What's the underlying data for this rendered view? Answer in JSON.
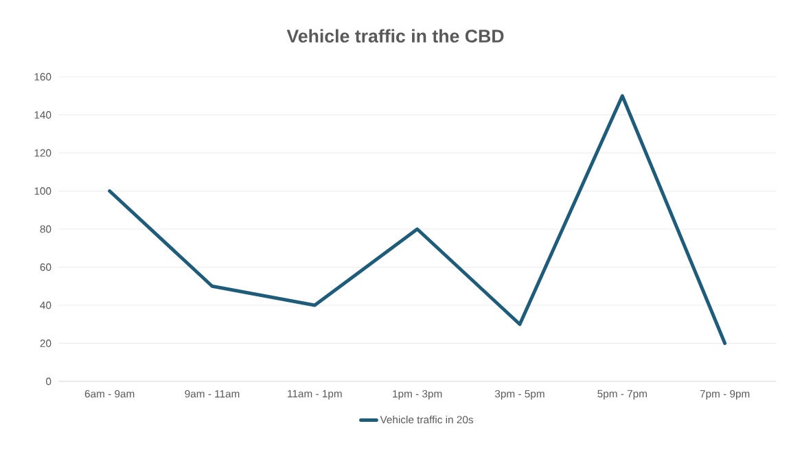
{
  "chart_data": {
    "type": "line",
    "title": "Vehicle traffic in the CBD",
    "categories": [
      "6am - 9am",
      "9am - 11am",
      "11am - 1pm",
      "1pm - 3pm",
      "3pm - 5pm",
      "5pm - 7pm",
      "7pm - 9pm"
    ],
    "series": [
      {
        "name": "Vehicle traffic in 20s",
        "color": "#1f5c7a",
        "values": [
          100,
          50,
          40,
          80,
          30,
          150,
          20
        ]
      }
    ],
    "ylim": [
      0,
      160
    ],
    "yticks": [
      0,
      20,
      40,
      60,
      80,
      100,
      120,
      140,
      160
    ],
    "grid": "y",
    "legend": "bottom",
    "marker": "none",
    "line_style": "solid"
  }
}
